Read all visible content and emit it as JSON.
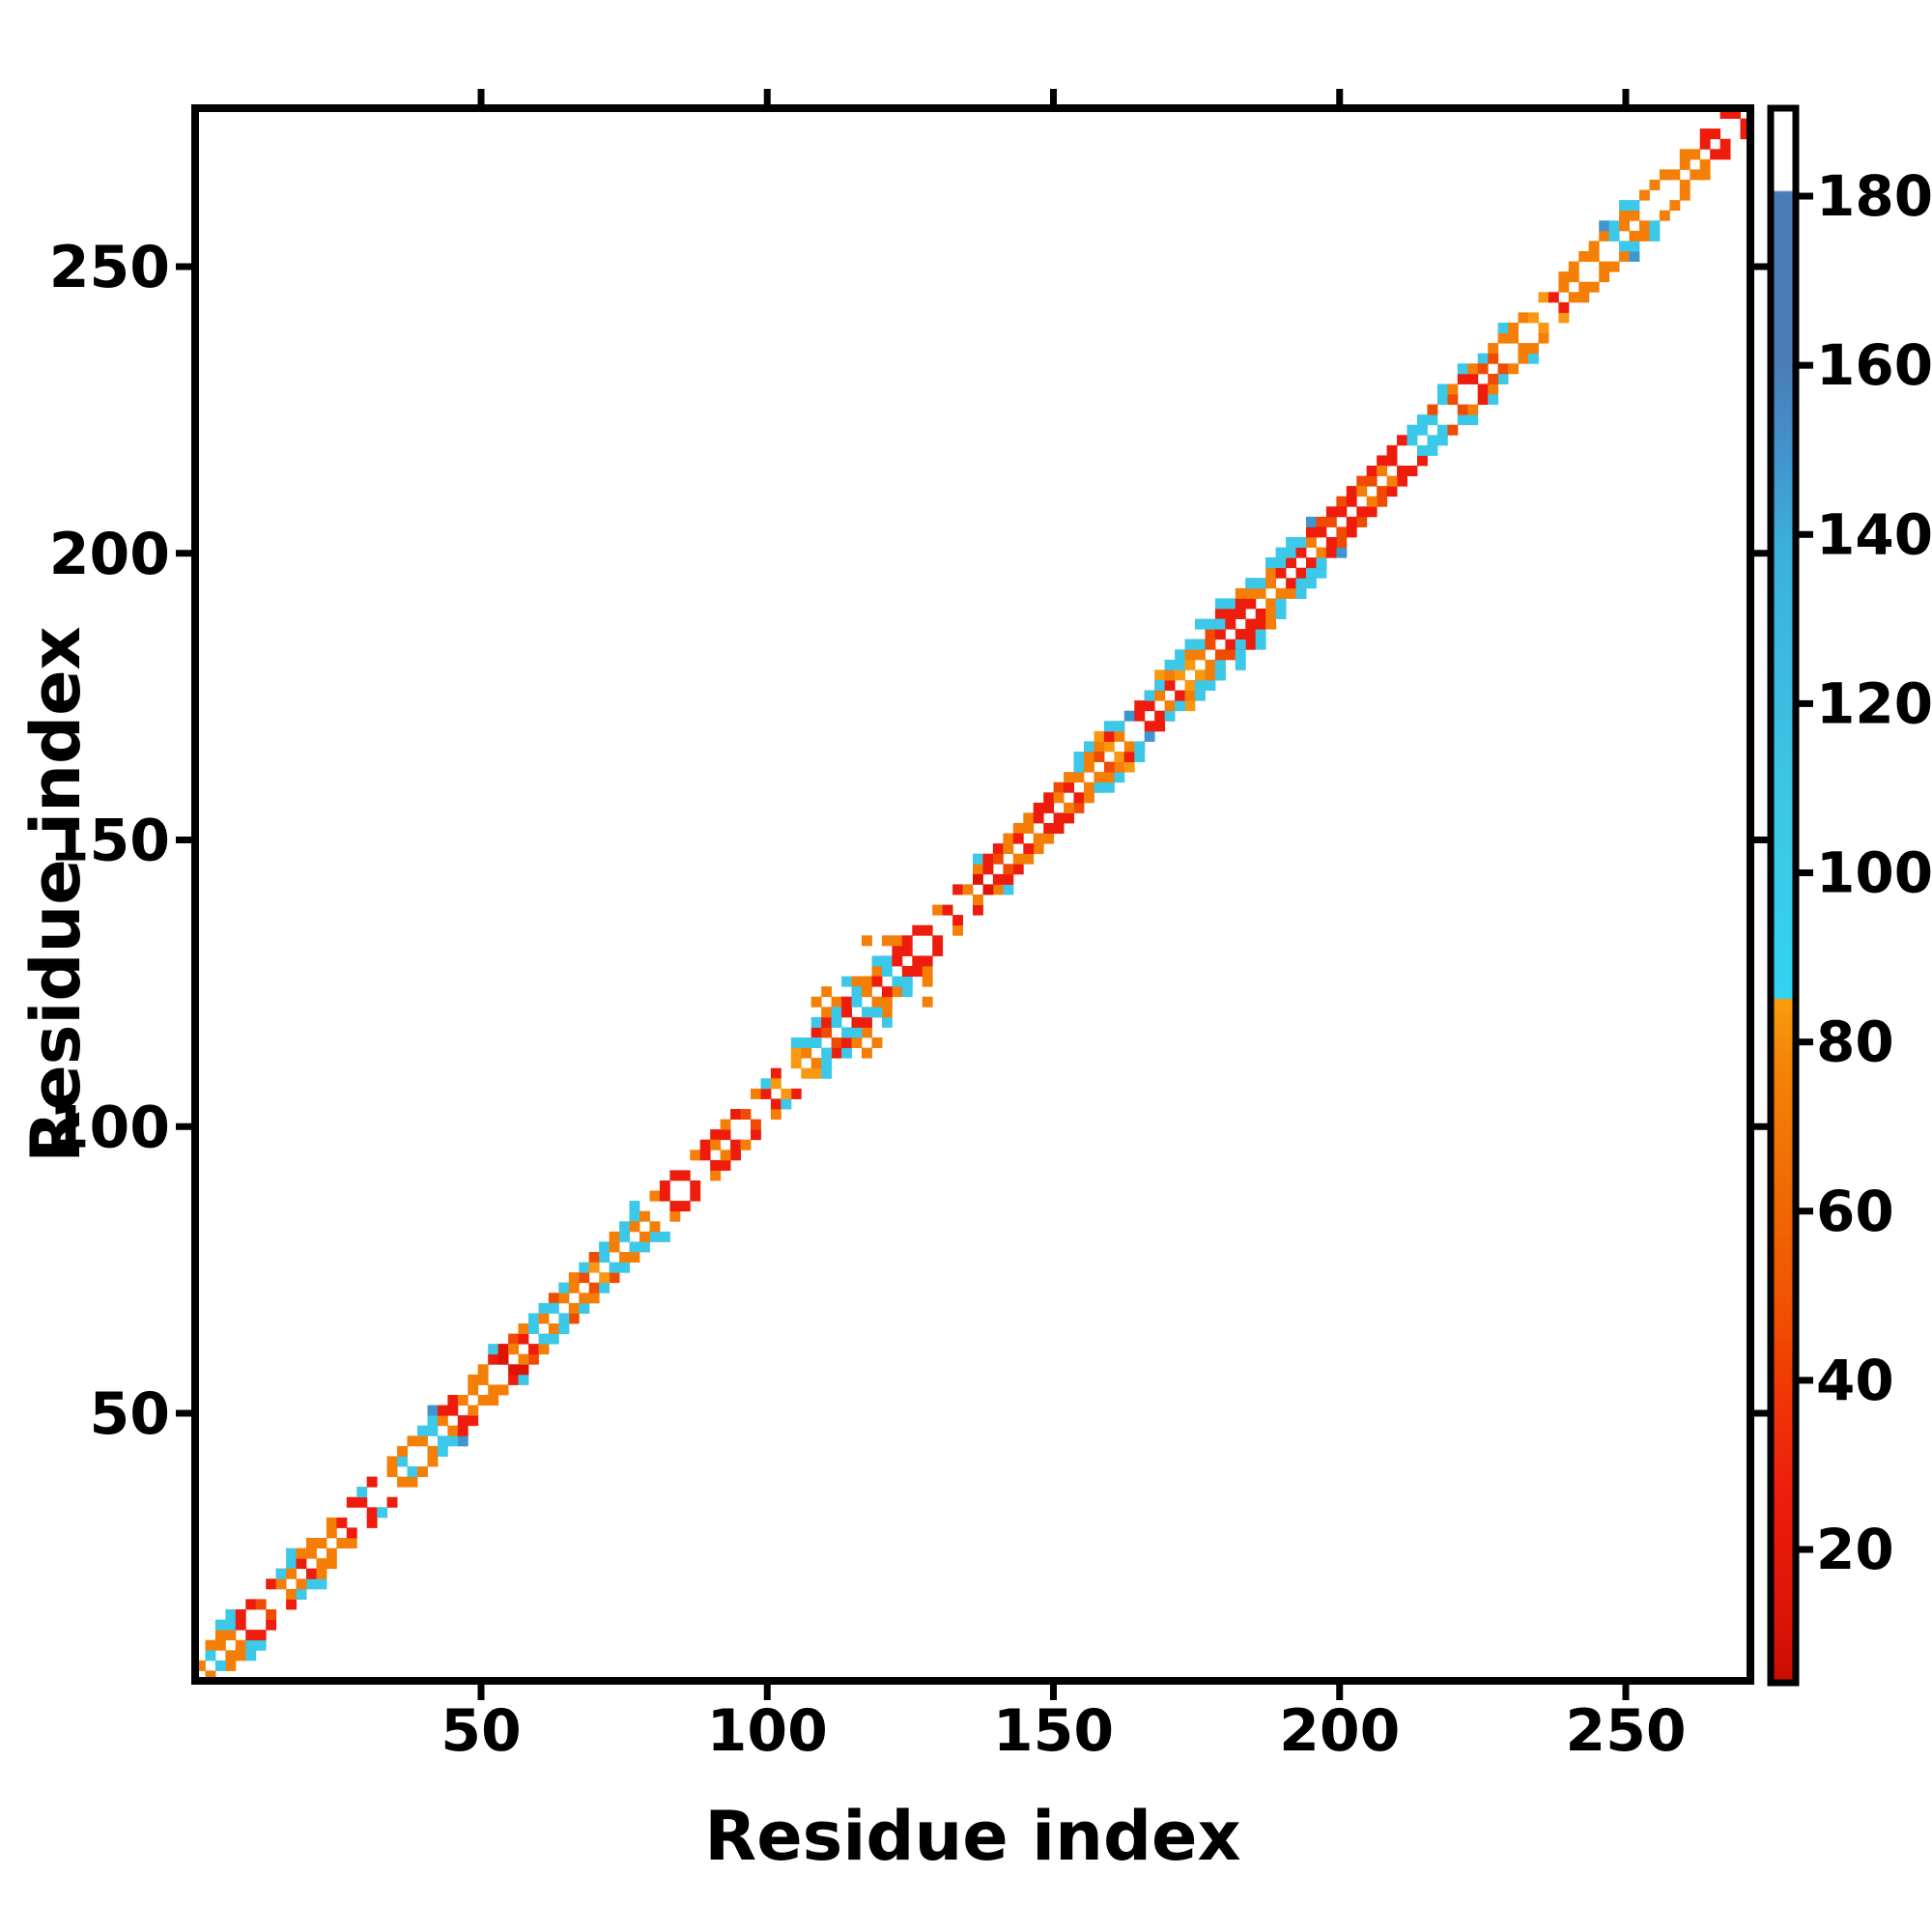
{
  "figure": {
    "kind": "protein residue contact map",
    "background": "#ffffff",
    "frame_color": "#000000"
  },
  "chart_data": {
    "type": "heatmap",
    "title": "",
    "xlabel": "Residue index",
    "ylabel": "Residue index",
    "x_ticks": [
      50,
      100,
      150,
      200,
      250
    ],
    "y_ticks": [
      50,
      100,
      150,
      200,
      250
    ],
    "x_range": [
      1,
      272
    ],
    "y_range": [
      4,
      277
    ],
    "grid": false,
    "legend_position": "none",
    "description": "Symmetric residue-residue contact map: contacts occur only near the main diagonal (sequence separation ~2-5 residues). The exact diagonal i=j is empty (white). Cells are colored by the value shown on the colorbar; most near-diagonal contacts are red/orange (low values ~10-85) with scattered cyan (~85-140) and rare steel-blue (~150-180) cells. A dense contact cluster (blob) appears around residues 108-124, and a wider helix-like band with parallel cyan stripes spans residues ~153-196.",
    "colorbar": {
      "side": "right",
      "ticks": [
        20,
        40,
        60,
        80,
        100,
        120,
        140,
        160,
        180
      ],
      "range": [
        2,
        192
      ],
      "stops": [
        {
          "v": 2,
          "color": "#c90d00"
        },
        {
          "v": 12,
          "color": "#dd1405"
        },
        {
          "v": 26,
          "color": "#ee1c0c"
        },
        {
          "v": 40,
          "color": "#f13a04"
        },
        {
          "v": 50,
          "color": "#f15502"
        },
        {
          "v": 64,
          "color": "#f06d03"
        },
        {
          "v": 78,
          "color": "#f58508"
        },
        {
          "v": 85,
          "color": "#f89d0c"
        },
        {
          "v": 85.2,
          "color": "#32d2f2"
        },
        {
          "v": 105,
          "color": "#3cc8e8"
        },
        {
          "v": 138,
          "color": "#3bb0dc"
        },
        {
          "v": 150,
          "color": "#4292cc"
        },
        {
          "v": 160,
          "color": "#4a7db8"
        },
        {
          "v": 180.5,
          "color": "#4a7db8"
        },
        {
          "v": 180.7,
          "color": "#ffffff"
        },
        {
          "v": 192,
          "color": "#ffffff"
        }
      ]
    },
    "cell_colors": {
      "red": "#ee1c0c",
      "deep_red": "#dd1405",
      "orange_red": "#f04b02",
      "orange": "#f57e06",
      "light_orange": "#fb9812",
      "cyan": "#3cc8e8",
      "steel": "#3f95cf"
    },
    "band_segments": [
      {
        "from": 1,
        "to": 6,
        "style": "corner"
      },
      {
        "from": 6,
        "to": 14,
        "style": "redrun"
      },
      {
        "from": 14,
        "to": 22,
        "style": "cyanrich"
      },
      {
        "from": 22,
        "to": 34,
        "style": "normal"
      },
      {
        "from": 34,
        "to": 42,
        "style": "cyanrich"
      },
      {
        "from": 42,
        "to": 54,
        "style": "normal"
      },
      {
        "from": 54,
        "to": 78,
        "style": "cyanrich"
      },
      {
        "from": 78,
        "to": 88,
        "style": "normal"
      },
      {
        "from": 88,
        "to": 97,
        "style": "redrun"
      },
      {
        "from": 97,
        "to": 108,
        "style": "normal"
      },
      {
        "from": 108,
        "to": 124,
        "style": "blob"
      },
      {
        "from": 124,
        "to": 147,
        "style": "normal"
      },
      {
        "from": 147,
        "to": 153,
        "style": "redrun"
      },
      {
        "from": 153,
        "to": 162,
        "style": "wide"
      },
      {
        "from": 162,
        "to": 167,
        "style": "normal"
      },
      {
        "from": 167,
        "to": 196,
        "style": "wide"
      },
      {
        "from": 196,
        "to": 210,
        "style": "redrun"
      },
      {
        "from": 210,
        "to": 218,
        "style": "cyanrich"
      },
      {
        "from": 218,
        "to": 223,
        "style": "normal"
      },
      {
        "from": 223,
        "to": 230,
        "style": "cyanrich"
      },
      {
        "from": 230,
        "to": 240,
        "style": "normal"
      },
      {
        "from": 240,
        "to": 252,
        "style": "cyanrich"
      },
      {
        "from": 252,
        "to": 262,
        "style": "normal"
      },
      {
        "from": 262,
        "to": 269,
        "style": "redrun"
      },
      {
        "from": 269,
        "to": 278,
        "style": "corner"
      }
    ]
  }
}
